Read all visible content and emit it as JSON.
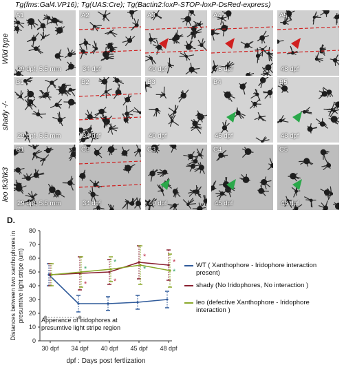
{
  "figure": {
    "title": "Tg(fms:Gal4.VP16); Tg(UAS:Cre); Tg(Bactin2:loxP-STOP-loxP-DsRed-express)",
    "rows": [
      {
        "label": "Wild type",
        "panels": [
          {
            "id": "A1",
            "caption": "29 dpf, 5.5 mm"
          },
          {
            "id": "A2",
            "caption": "34 dpf"
          },
          {
            "id": "A3",
            "caption": "40 dpf"
          },
          {
            "id": "A4",
            "caption": "45 dpf"
          },
          {
            "id": "A5",
            "caption": "48 dpf"
          }
        ]
      },
      {
        "label": "shady -/-",
        "panels": [
          {
            "id": "B1",
            "caption": "29 dpf, 5.5 mm"
          },
          {
            "id": "B2",
            "caption": "34 dpf"
          },
          {
            "id": "B3",
            "caption": "40 dpf"
          },
          {
            "id": "B4",
            "caption": "45 dpf"
          },
          {
            "id": "B5",
            "caption": "48 dpf"
          }
        ]
      },
      {
        "label": "leo tk3/tk3",
        "panels": [
          {
            "id": "C1",
            "caption": "29 dpf, 5.5 mm"
          },
          {
            "id": "C2",
            "caption": "34 dpf"
          },
          {
            "id": "C3",
            "caption": "40 dpf"
          },
          {
            "id": "C4",
            "caption": "45 dpf"
          },
          {
            "id": "C5",
            "caption": "48 dpf"
          }
        ]
      }
    ],
    "chart_label": "D."
  },
  "chart_data": {
    "type": "line",
    "categories": [
      "30 dpf",
      "34 dpf",
      "40 dpf",
      "45 dpf",
      "48 dpf"
    ],
    "ylabel": "Distances between two xanthophores in presumtive light stripe (um)",
    "xlabel": "dpf : Days post fertlization",
    "ylim": [
      0,
      80
    ],
    "yticks": [
      0,
      10,
      20,
      30,
      40,
      50,
      60,
      70,
      80
    ],
    "annotation": "Apperance of iridophores at presumtive light stripe region",
    "series": [
      {
        "name": "WT ( Xanthophore - Iridophore interaction present)",
        "color": "#2f5a9a",
        "values": [
          48,
          27,
          27,
          28,
          30
        ],
        "err": [
          8,
          6,
          5,
          5,
          6
        ]
      },
      {
        "name": "shady (No Iridophores, No interaction )",
        "color": "#8a2030",
        "values": [
          48,
          49,
          50,
          57,
          55
        ],
        "err": [
          8,
          12,
          9,
          12,
          11
        ]
      },
      {
        "name": "leo (defective Xanthophore - Iridophore interaction )",
        "color": "#8aa82a",
        "values": [
          48,
          50,
          52,
          55,
          51
        ],
        "err": [
          8,
          11,
          9,
          14,
          12
        ]
      }
    ],
    "stars": [
      {
        "x": "34 dpf",
        "y": 52,
        "color": "#3aa86a"
      },
      {
        "x": "34 dpf",
        "y": 41,
        "color": "#c0304a"
      },
      {
        "x": "40 dpf",
        "y": 57,
        "color": "#3aa86a"
      },
      {
        "x": "40 dpf",
        "y": 43,
        "color": "#c0304a"
      },
      {
        "x": "45 dpf",
        "y": 61,
        "color": "#c0304a"
      },
      {
        "x": "45 dpf",
        "y": 52,
        "color": "#3aa86a"
      },
      {
        "x": "48 dpf",
        "y": 57,
        "color": "#c0304a"
      },
      {
        "x": "48 dpf",
        "y": 50,
        "color": "#3aa86a"
      }
    ]
  }
}
